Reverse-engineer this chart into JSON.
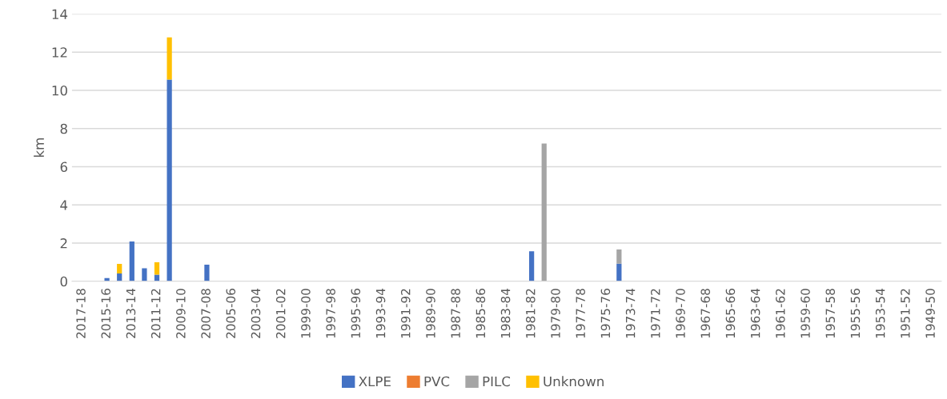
{
  "chart_data": {
    "type": "bar",
    "stacked": true,
    "ylabel": "km",
    "ylim": [
      0,
      14
    ],
    "yticks": [
      0,
      2,
      4,
      6,
      8,
      10,
      12,
      14
    ],
    "grid": "y",
    "legend": "bottom",
    "categories": [
      "2017-18",
      null,
      "2015-16",
      null,
      "2013-14",
      null,
      "2011-12",
      null,
      "2009-10",
      null,
      "2007-08",
      null,
      "2005-06",
      null,
      "2003-04",
      null,
      "2001-02",
      null,
      "1999-00",
      null,
      "1997-98",
      null,
      "1995-96",
      null,
      "1993-94",
      null,
      "1991-92",
      null,
      "1989-90",
      null,
      "1987-88",
      null,
      "1985-86",
      null,
      "1983-84",
      null,
      "1981-82",
      null,
      "1979-80",
      null,
      "1977-78",
      null,
      "1975-76",
      null,
      "1973-74",
      null,
      "1971-72",
      null,
      "1969-70",
      null,
      "1967-68",
      null,
      "1965-66",
      null,
      "1963-64",
      null,
      "1961-62",
      null,
      "1959-60",
      null,
      "1957-58",
      null,
      "1955-56",
      null,
      "1953-54",
      null,
      "1951-52",
      null,
      "1949-50"
    ],
    "series": [
      {
        "name": "XLPE",
        "color": "#4472c4",
        "values": [
          0,
          0,
          0.17,
          0.41,
          2.08,
          0.68,
          0.35,
          10.56,
          0,
          0,
          0.87,
          0,
          0,
          0,
          0,
          0,
          0,
          0,
          0,
          0,
          0,
          0,
          0,
          0,
          0,
          0,
          0,
          0,
          0,
          0,
          0,
          0,
          0,
          0,
          0,
          0,
          1.57,
          0,
          0,
          0,
          0,
          0,
          0,
          0.92,
          0,
          0,
          0,
          0,
          0,
          0,
          0,
          0,
          0,
          0,
          0,
          0,
          0,
          0,
          0,
          0,
          0,
          0,
          0,
          0,
          0,
          0,
          0,
          0,
          0
        ]
      },
      {
        "name": "PVC",
        "color": "#ed7d31",
        "values": [
          0,
          0,
          0,
          0,
          0,
          0,
          0,
          0,
          0,
          0,
          0,
          0,
          0,
          0,
          0,
          0,
          0,
          0,
          0,
          0,
          0,
          0,
          0,
          0,
          0,
          0,
          0,
          0,
          0,
          0,
          0,
          0,
          0,
          0,
          0,
          0,
          0,
          0,
          0,
          0,
          0,
          0,
          0,
          0,
          0,
          0,
          0,
          0,
          0,
          0,
          0,
          0,
          0,
          0,
          0,
          0,
          0,
          0,
          0,
          0,
          0,
          0,
          0,
          0,
          0,
          0,
          0,
          0,
          0
        ]
      },
      {
        "name": "PILC",
        "color": "#a5a5a5",
        "values": [
          0,
          0,
          0,
          0,
          0,
          0,
          0,
          0,
          0,
          0,
          0,
          0,
          0,
          0,
          0,
          0,
          0,
          0,
          0,
          0,
          0,
          0,
          0,
          0,
          0,
          0,
          0,
          0,
          0,
          0,
          0,
          0,
          0,
          0,
          0,
          0,
          0,
          7.22,
          0,
          0,
          0,
          0,
          0,
          0.75,
          0,
          0,
          0,
          0,
          0,
          0,
          0,
          0,
          0,
          0,
          0,
          0,
          0,
          0,
          0,
          0,
          0,
          0,
          0,
          0,
          0,
          0,
          0,
          0,
          0
        ]
      },
      {
        "name": "Unknown",
        "color": "#ffc000",
        "values": [
          0,
          0,
          0,
          0.5,
          0,
          0,
          0.65,
          2.21,
          0,
          0,
          0,
          0,
          0,
          0,
          0,
          0,
          0,
          0,
          0,
          0,
          0,
          0,
          0,
          0,
          0,
          0,
          0,
          0,
          0,
          0,
          0,
          0,
          0,
          0,
          0,
          0,
          0,
          0,
          0,
          0,
          0,
          0,
          0,
          0,
          0,
          0,
          0,
          0,
          0,
          0,
          0,
          0,
          0,
          0,
          0,
          0,
          0,
          0,
          0,
          0,
          0,
          0,
          0,
          0,
          0,
          0,
          0,
          0,
          0
        ]
      }
    ]
  }
}
